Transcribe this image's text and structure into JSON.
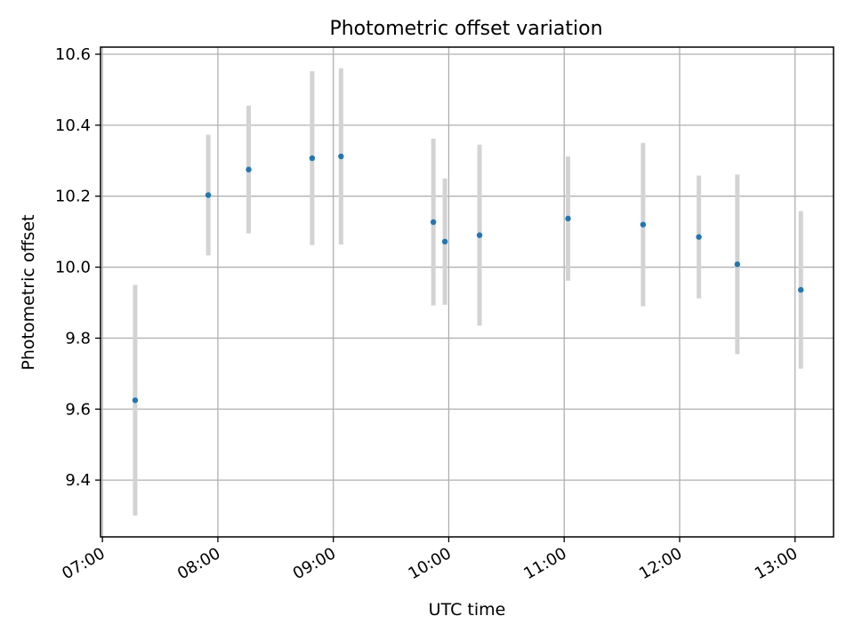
{
  "chart_data": {
    "type": "scatter",
    "title": "Photometric offset variation",
    "xlabel": "UTC time",
    "ylabel": "Photometric offset",
    "x_ticks": [
      "07:00",
      "08:00",
      "09:00",
      "10:00",
      "11:00",
      "12:00",
      "13:00"
    ],
    "y_ticks": [
      "9.4",
      "9.6",
      "9.8",
      "10.0",
      "10.2",
      "10.4",
      "10.6"
    ],
    "xlim": [
      "06:59",
      "13:20"
    ],
    "ylim": [
      9.24,
      10.62
    ],
    "grid": true,
    "point_color": "#1f77b4",
    "errorbar_color": "#d3d3d3",
    "points": [
      {
        "x": "07:17",
        "y": 9.625,
        "yerr": 0.325
      },
      {
        "x": "07:55",
        "y": 10.203,
        "yerr": 0.17
      },
      {
        "x": "08:16",
        "y": 10.275,
        "yerr": 0.18
      },
      {
        "x": "08:49",
        "y": 10.307,
        "yerr": 0.245
      },
      {
        "x": "09:04",
        "y": 10.312,
        "yerr": 0.248
      },
      {
        "x": "09:52",
        "y": 10.127,
        "yerr": 0.235
      },
      {
        "x": "09:58",
        "y": 10.072,
        "yerr": 0.178
      },
      {
        "x": "10:16",
        "y": 10.09,
        "yerr": 0.255
      },
      {
        "x": "11:02",
        "y": 10.137,
        "yerr": 0.175
      },
      {
        "x": "11:41",
        "y": 10.12,
        "yerr": 0.23
      },
      {
        "x": "12:10",
        "y": 10.085,
        "yerr": 0.173
      },
      {
        "x": "12:30",
        "y": 10.008,
        "yerr": 0.253
      },
      {
        "x": "13:03",
        "y": 9.936,
        "yerr": 0.222
      }
    ]
  }
}
